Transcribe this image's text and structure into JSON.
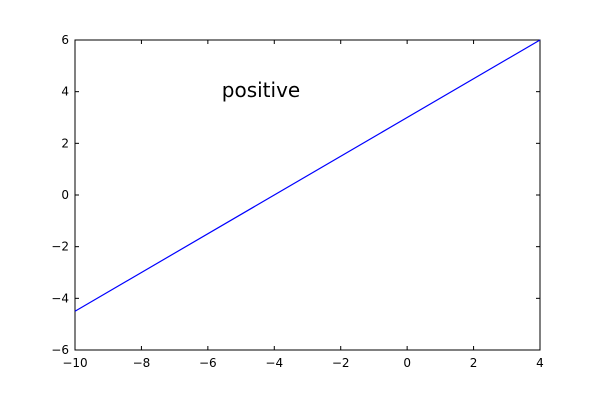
{
  "chart_data": {
    "type": "line",
    "title": "",
    "xlabel": "",
    "ylabel": "",
    "xlim": [
      -10,
      4
    ],
    "ylim": [
      -6,
      6
    ],
    "x_ticks": [
      -10,
      -8,
      -6,
      -4,
      -2,
      0,
      2,
      4
    ],
    "y_ticks": [
      -6,
      -4,
      -2,
      0,
      2,
      4,
      6
    ],
    "x_tick_labels": [
      "−10",
      "−8",
      "−6",
      "−4",
      "−2",
      "0",
      "2",
      "4"
    ],
    "y_tick_labels": [
      "−6",
      "−4",
      "−2",
      "0",
      "2",
      "4",
      "6"
    ],
    "grid": false,
    "series": [
      {
        "color": "#0000ff",
        "x": [
          -10,
          4
        ],
        "y": [
          -4.5,
          6
        ]
      }
    ],
    "annotations": [
      {
        "text": "positive",
        "x": -4.4,
        "y": 3.8
      }
    ]
  }
}
